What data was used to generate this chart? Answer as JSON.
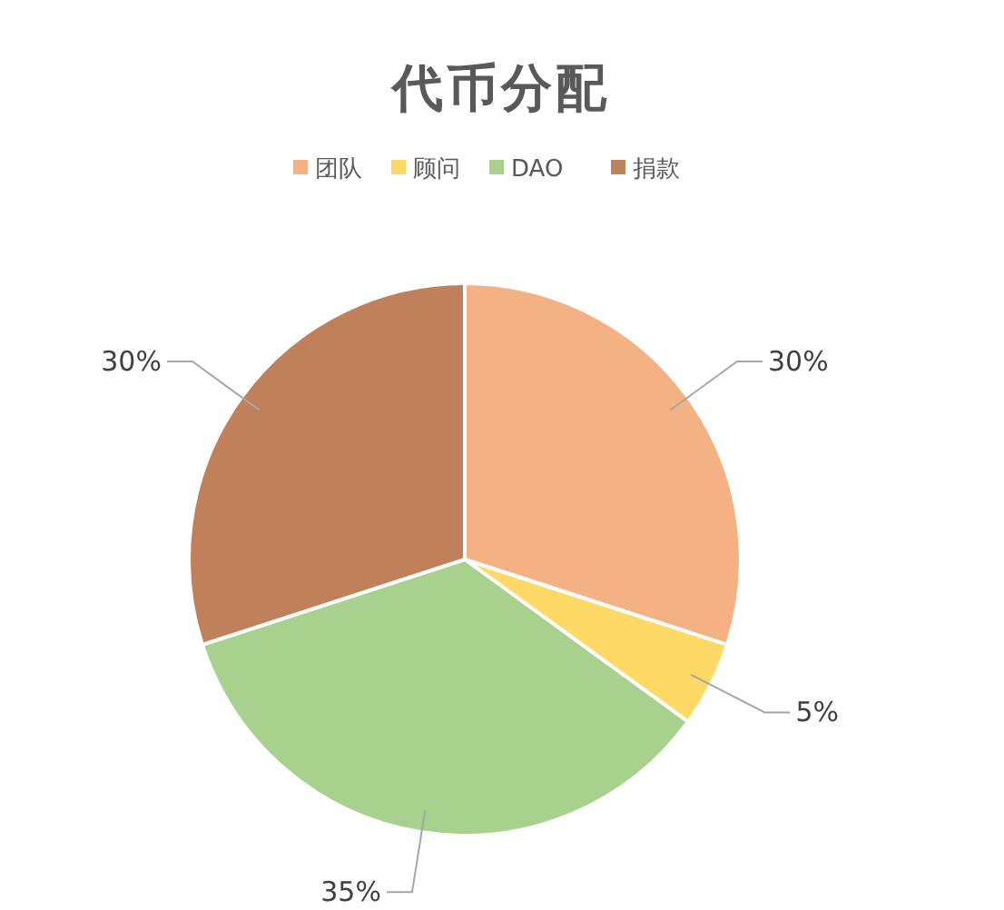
{
  "chart_data": {
    "type": "pie",
    "title": "代币分配",
    "legend": "top",
    "categories": [
      "团队",
      "顾问",
      "DAO",
      "捐款"
    ],
    "values": [
      30,
      5,
      35,
      30
    ],
    "colors": [
      "#f4b183",
      "#ffd966",
      "#a9d18e",
      "#c0805a"
    ],
    "value_labels": [
      "30%",
      "5%",
      "35%",
      "30%"
    ]
  }
}
